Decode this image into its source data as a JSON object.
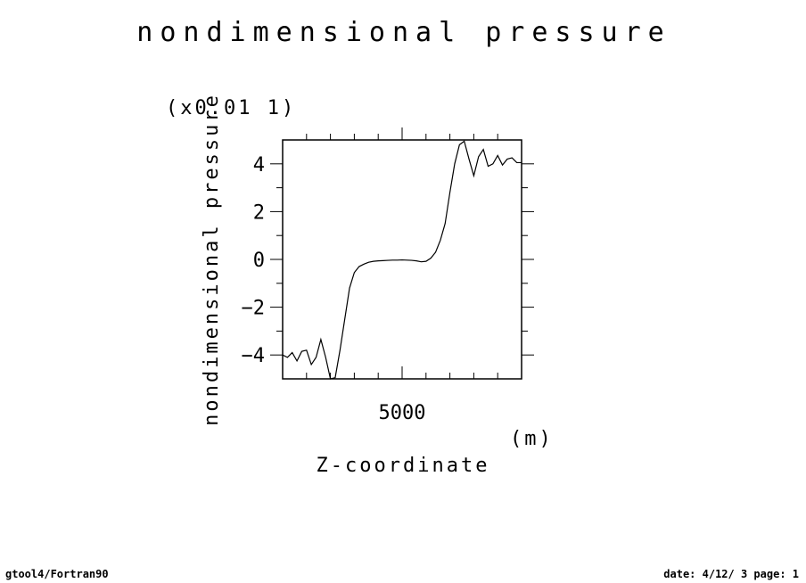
{
  "footer": {
    "left": "gtool4/Fortran90",
    "right": "date: 4/12/ 3 page: 1"
  },
  "chart_data": {
    "type": "line",
    "title": "nondimensional pressure",
    "xlabel": "Z-coordinate",
    "xunit": "(m)",
    "ylabel": "nondimensional pressure",
    "yscale_label": "(x0.01 1)",
    "xlim": [
      0,
      10000
    ],
    "ylim": [
      -5,
      5
    ],
    "xticks": [
      5000
    ],
    "yticks": [
      -4,
      -2,
      0,
      2,
      4
    ],
    "x_minor_step": 1000,
    "y_minor_step": 1,
    "grid": false,
    "series": [
      {
        "x": [
          0,
          200,
          400,
          600,
          800,
          1000,
          1200,
          1400,
          1600,
          1800,
          2000,
          2200,
          2400,
          2600,
          2800,
          3000,
          3200,
          3400,
          3600,
          3800,
          4000,
          4200,
          4400,
          4600,
          4800,
          5000,
          5200,
          5400,
          5600,
          5800,
          6000,
          6200,
          6400,
          6600,
          6800,
          7000,
          7200,
          7400,
          7600,
          7800,
          8000,
          8200,
          8400,
          8600,
          8800,
          9000,
          9200,
          9400,
          9600,
          9800,
          10000
        ],
        "y": [
          -4.0,
          -4.1,
          -3.9,
          -4.25,
          -3.85,
          -3.8,
          -4.4,
          -4.1,
          -3.35,
          -4.1,
          -5.0,
          -4.95,
          -3.8,
          -2.5,
          -1.2,
          -0.55,
          -0.3,
          -0.2,
          -0.12,
          -0.08,
          -0.06,
          -0.05,
          -0.04,
          -0.03,
          -0.03,
          -0.02,
          -0.03,
          -0.04,
          -0.06,
          -0.1,
          -0.08,
          0.05,
          0.3,
          0.8,
          1.5,
          2.8,
          4.0,
          4.8,
          4.95,
          4.2,
          3.5,
          4.3,
          4.6,
          3.9,
          4.0,
          4.35,
          3.95,
          4.2,
          4.25,
          4.05,
          4.05
        ]
      }
    ]
  }
}
